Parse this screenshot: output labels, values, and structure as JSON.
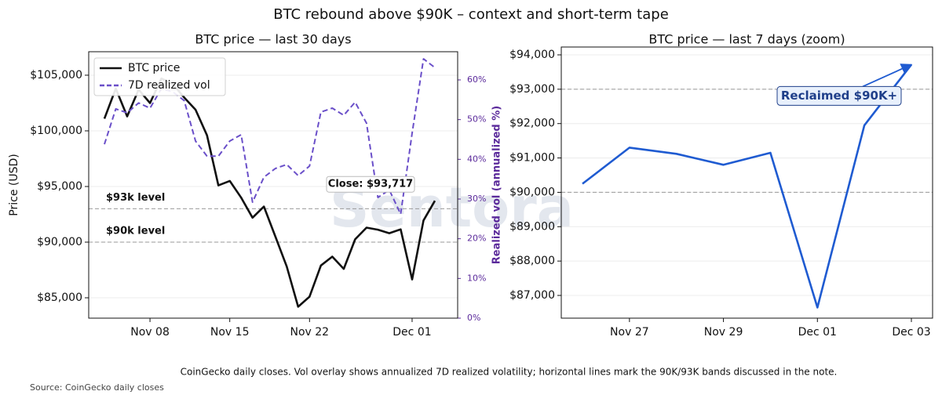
{
  "title": "BTC rebound above $90K – context and short-term tape",
  "caption": "CoinGecko daily closes. Vol overlay shows annualized 7D realized volatility; horizontal lines mark the 90K/93K bands discussed in the note.",
  "source": "Source: CoinGecko daily closes",
  "watermark": "Sentora",
  "chart_data": [
    {
      "type": "line",
      "title": "BTC price — last 30 days",
      "y_label": "Price (USD)",
      "y2_label": "Realized vol (annualized %)",
      "x": [
        "Nov 04",
        "Nov 05",
        "Nov 06",
        "Nov 07",
        "Nov 08",
        "Nov 09",
        "Nov 10",
        "Nov 11",
        "Nov 12",
        "Nov 13",
        "Nov 14",
        "Nov 15",
        "Nov 16",
        "Nov 17",
        "Nov 18",
        "Nov 19",
        "Nov 20",
        "Nov 21",
        "Nov 22",
        "Nov 23",
        "Nov 24",
        "Nov 25",
        "Nov 26",
        "Nov 27",
        "Nov 28",
        "Nov 29",
        "Nov 30",
        "Dec 01",
        "Dec 02",
        "Dec 03"
      ],
      "xticks": [
        "Nov 08",
        "Nov 15",
        "Nov 22",
        "Dec 01"
      ],
      "series": [
        {
          "name": "BTC price",
          "color": "#111111",
          "style": "solid",
          "values": [
            101100,
            103800,
            101300,
            103700,
            102500,
            104700,
            104200,
            103000,
            101900,
            99600,
            95100,
            95500,
            94000,
            92200,
            93200,
            90500,
            87800,
            84200,
            85100,
            87900,
            88700,
            87600,
            90250,
            91300,
            91120,
            90800,
            91150,
            86650,
            91950,
            93717
          ]
        },
        {
          "name": "7D realized vol",
          "color": "#6a4fc9",
          "style": "dashed",
          "axis": "y2",
          "values": [
            43.8,
            52.7,
            51.7,
            54.2,
            52.9,
            57.8,
            57.0,
            54.8,
            44.6,
            40.8,
            40.8,
            44.6,
            46.2,
            29.2,
            35.5,
            37.7,
            38.7,
            35.9,
            38.3,
            51.9,
            52.9,
            51.1,
            54.4,
            49.1,
            30.4,
            32.3,
            26.2,
            46.6,
            65.3,
            63.1
          ]
        }
      ],
      "ylim": [
        83170,
        107110
      ],
      "yticks": [
        {
          "value": 85000,
          "label": "$85,000"
        },
        {
          "value": 90000,
          "label": "$90,000"
        },
        {
          "value": 95000,
          "label": "$95,000"
        },
        {
          "value": 100000,
          "label": "$100,000"
        },
        {
          "value": 105000,
          "label": "$105,000"
        }
      ],
      "y2lim": [
        0,
        67.1
      ],
      "y2ticks": [
        {
          "value": 0,
          "label": "0%"
        },
        {
          "value": 10,
          "label": "10%"
        },
        {
          "value": 20,
          "label": "20%"
        },
        {
          "value": 30,
          "label": "30%"
        },
        {
          "value": 40,
          "label": "40%"
        },
        {
          "value": 50,
          "label": "50%"
        },
        {
          "value": 60,
          "label": "60%"
        }
      ],
      "hlines": [
        {
          "value": 93000,
          "label": "$93k level"
        },
        {
          "value": 90000,
          "label": "$90k level"
        }
      ],
      "annotation": {
        "text": "Close: $93,717"
      },
      "grid": true,
      "legend": "upper left"
    },
    {
      "type": "line",
      "title": "BTC price — last 7 days (zoom)",
      "x": [
        "Nov 26",
        "Nov 27",
        "Nov 28",
        "Nov 29",
        "Nov 30",
        "Dec 01",
        "Dec 02",
        "Dec 03"
      ],
      "xticks": [
        "Nov 27",
        "Nov 29",
        "Dec 01",
        "Dec 03"
      ],
      "series": [
        {
          "color": "#1f5bd1",
          "style": "solid",
          "values": [
            90250,
            91300,
            91120,
            90800,
            91150,
            86650,
            91950,
            93717
          ]
        }
      ],
      "ylim": [
        86339,
        94228
      ],
      "yticks": [
        {
          "value": 87000,
          "label": "$87,000"
        },
        {
          "value": 88000,
          "label": "$88,000"
        },
        {
          "value": 89000,
          "label": "$89,000"
        },
        {
          "value": 90000,
          "label": "$90,000"
        },
        {
          "value": 91000,
          "label": "$91,000"
        },
        {
          "value": 92000,
          "label": "$92,000"
        },
        {
          "value": 93000,
          "label": "$93,000"
        },
        {
          "value": 94000,
          "label": "$94,000"
        }
      ],
      "hlines": [
        {
          "value": 93000
        },
        {
          "value": 90000
        }
      ],
      "annotation": {
        "text": "Reclaimed $90K+"
      },
      "grid": true
    }
  ]
}
